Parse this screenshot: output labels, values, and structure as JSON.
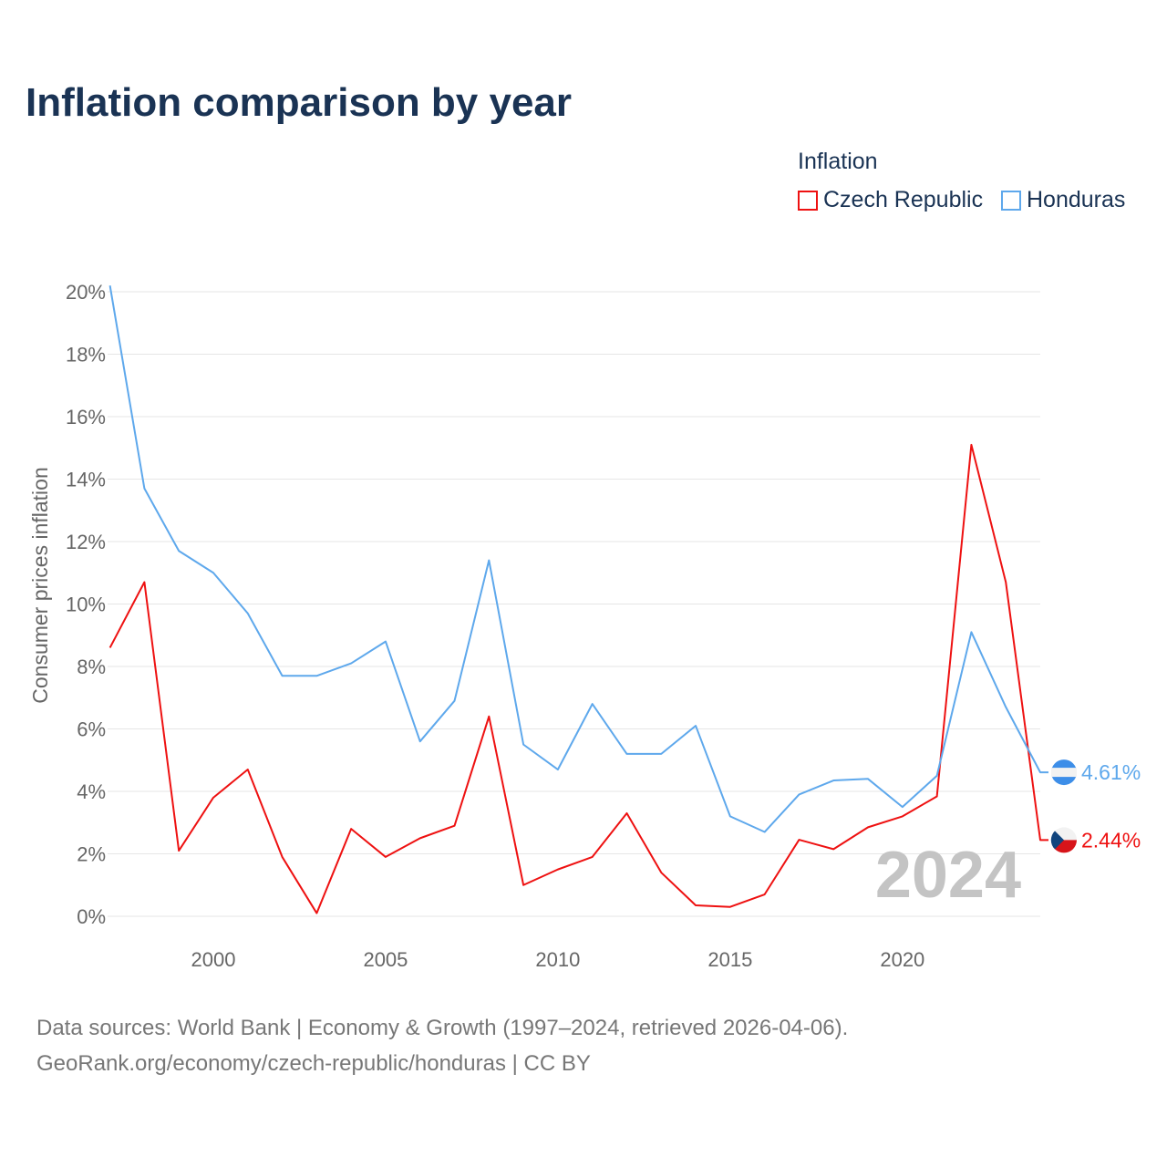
{
  "title": "Inflation comparison by year",
  "legend": {
    "title": "Inflation",
    "items": [
      {
        "name": "Czech Republic",
        "color": "#ee1111"
      },
      {
        "name": "Honduras",
        "color": "#5ea8ec"
      }
    ]
  },
  "footer": {
    "line1": "Data sources: World Bank | Economy & Growth (1997–2024, retrieved 2026-04-06).",
    "line2": "GeoRank.org/economy/czech-republic/honduras | CC BY"
  },
  "chart_data": {
    "type": "line",
    "title": "Inflation comparison by year",
    "xlabel": "",
    "ylabel": "Consumer prices inflation",
    "x": [
      1997,
      1998,
      1999,
      2000,
      2001,
      2002,
      2003,
      2004,
      2005,
      2006,
      2007,
      2008,
      2009,
      2010,
      2011,
      2012,
      2013,
      2014,
      2015,
      2016,
      2017,
      2018,
      2019,
      2020,
      2021,
      2022,
      2023,
      2024
    ],
    "xlim": [
      1997,
      2024
    ],
    "ylim": [
      0,
      20
    ],
    "xticks": [
      2000,
      2005,
      2010,
      2015,
      2020
    ],
    "xtick_labels": [
      "2000",
      "2005",
      "2010",
      "2015",
      "2020"
    ],
    "yticks": [
      0,
      2,
      4,
      6,
      8,
      10,
      12,
      14,
      16,
      18,
      20
    ],
    "ytick_labels": [
      "0%",
      "2%",
      "4%",
      "6%",
      "8%",
      "10%",
      "12%",
      "14%",
      "16%",
      "18%",
      "20%"
    ],
    "grid": true,
    "legend_position": "top-right",
    "watermark_year": "2024",
    "series": [
      {
        "name": "Czech Republic",
        "color": "#ee1111",
        "end_label": "2.44%",
        "values": [
          8.6,
          10.7,
          2.1,
          3.8,
          4.7,
          1.9,
          0.1,
          2.8,
          1.9,
          2.5,
          2.9,
          6.4,
          1.0,
          1.5,
          1.9,
          3.3,
          1.4,
          0.35,
          0.3,
          0.7,
          2.45,
          2.15,
          2.85,
          3.2,
          3.84,
          15.1,
          10.7,
          2.44
        ]
      },
      {
        "name": "Honduras",
        "color": "#5ea8ec",
        "end_label": "4.61%",
        "values": [
          20.2,
          13.7,
          11.7,
          11.0,
          9.7,
          7.7,
          7.7,
          8.1,
          8.8,
          5.6,
          6.9,
          11.4,
          5.5,
          4.7,
          6.8,
          5.2,
          5.2,
          6.1,
          3.2,
          2.7,
          3.9,
          4.35,
          4.4,
          3.5,
          4.5,
          9.1,
          6.7,
          4.61
        ]
      }
    ]
  }
}
